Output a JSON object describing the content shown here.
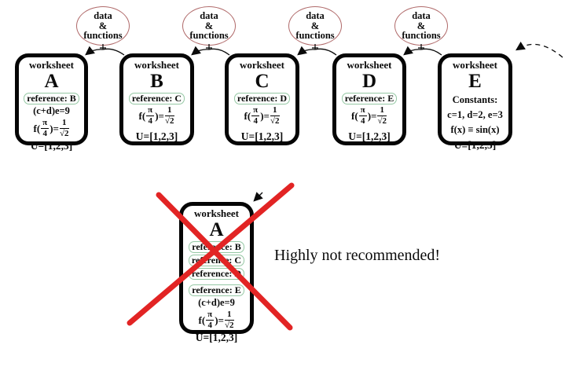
{
  "colors": {
    "ellipse_outline": "#b06a6a",
    "reference_outline": "#96c8a5",
    "cross_red": "#e22424",
    "card_border": "#050505"
  },
  "data_functions_label": {
    "line1": "data",
    "line2": "&",
    "line3": "functions"
  },
  "worksheets": [
    {
      "id": "A",
      "header": "worksheet",
      "letter": "A",
      "rows": [
        {
          "kind": "ref",
          "text": "reference: B"
        },
        {
          "kind": "text",
          "text": "(c+d)e=9"
        },
        {
          "kind": "formula",
          "parts": [
            {
              "kind": "t",
              "text": "f("
            },
            {
              "kind": "frac",
              "num": "π",
              "den": "4"
            },
            {
              "kind": "t",
              "text": ")= "
            },
            {
              "kind": "frac",
              "num": "1",
              "den": "√2"
            }
          ]
        },
        {
          "kind": "set",
          "text": "U=[1,2,3]"
        }
      ]
    },
    {
      "id": "B",
      "header": "worksheet",
      "letter": "B",
      "rows": [
        {
          "kind": "ref",
          "text": "reference: C"
        },
        {
          "kind": "formula",
          "parts": [
            {
              "kind": "t",
              "text": "f("
            },
            {
              "kind": "frac",
              "num": "π",
              "den": "4"
            },
            {
              "kind": "t",
              "text": ")= "
            },
            {
              "kind": "frac",
              "num": "1",
              "den": "√2"
            }
          ]
        },
        {
          "kind": "set",
          "text": "U=[1,2,3]",
          "gap": true
        }
      ]
    },
    {
      "id": "C",
      "header": "worksheet",
      "letter": "C",
      "rows": [
        {
          "kind": "ref",
          "text": "reference: D"
        },
        {
          "kind": "formula",
          "parts": [
            {
              "kind": "t",
              "text": "f("
            },
            {
              "kind": "frac",
              "num": "π",
              "den": "4"
            },
            {
              "kind": "t",
              "text": ")= "
            },
            {
              "kind": "frac",
              "num": "1",
              "den": "√2"
            }
          ]
        },
        {
          "kind": "set",
          "text": "U=[1,2,3]",
          "gap": true
        }
      ]
    },
    {
      "id": "D",
      "header": "worksheet",
      "letter": "D",
      "rows": [
        {
          "kind": "ref",
          "text": "reference: E"
        },
        {
          "kind": "formula",
          "parts": [
            {
              "kind": "t",
              "text": "f("
            },
            {
              "kind": "frac",
              "num": "π",
              "den": "4"
            },
            {
              "kind": "t",
              "text": ")= "
            },
            {
              "kind": "frac",
              "num": "1",
              "den": "√2"
            }
          ]
        },
        {
          "kind": "set",
          "text": "U=[1,2,3]",
          "gap": true
        }
      ]
    },
    {
      "id": "E",
      "header": "worksheet",
      "letter": "E",
      "rows": [
        {
          "kind": "text",
          "text": "Constants:"
        },
        {
          "kind": "text",
          "text": "c=1, d=2, e=3"
        },
        {
          "kind": "text",
          "text": "f(x) ≡ sin(x)"
        },
        {
          "kind": "set",
          "text": "U≡[1,2,3]"
        }
      ]
    }
  ],
  "crossed_worksheet": {
    "id": "A-crossed",
    "header": "worksheet",
    "letter": "A",
    "rows": [
      {
        "kind": "ref",
        "text": "reference: B"
      },
      {
        "kind": "ref",
        "text": "reference: C"
      },
      {
        "kind": "ref",
        "text": "reference: D"
      },
      {
        "kind": "ref",
        "text": "reference: E",
        "gap": true
      },
      {
        "kind": "text",
        "text": "(c+d)e=9"
      },
      {
        "kind": "formula",
        "parts": [
          {
            "kind": "t",
            "text": "f("
          },
          {
            "kind": "frac",
            "num": "π",
            "den": "4"
          },
          {
            "kind": "t",
            "text": ")= "
          },
          {
            "kind": "frac",
            "num": "1",
            "den": "√2"
          }
        ]
      },
      {
        "kind": "set",
        "text": "U=[1,2,3]"
      }
    ]
  },
  "caption": "Highly not recommended!"
}
